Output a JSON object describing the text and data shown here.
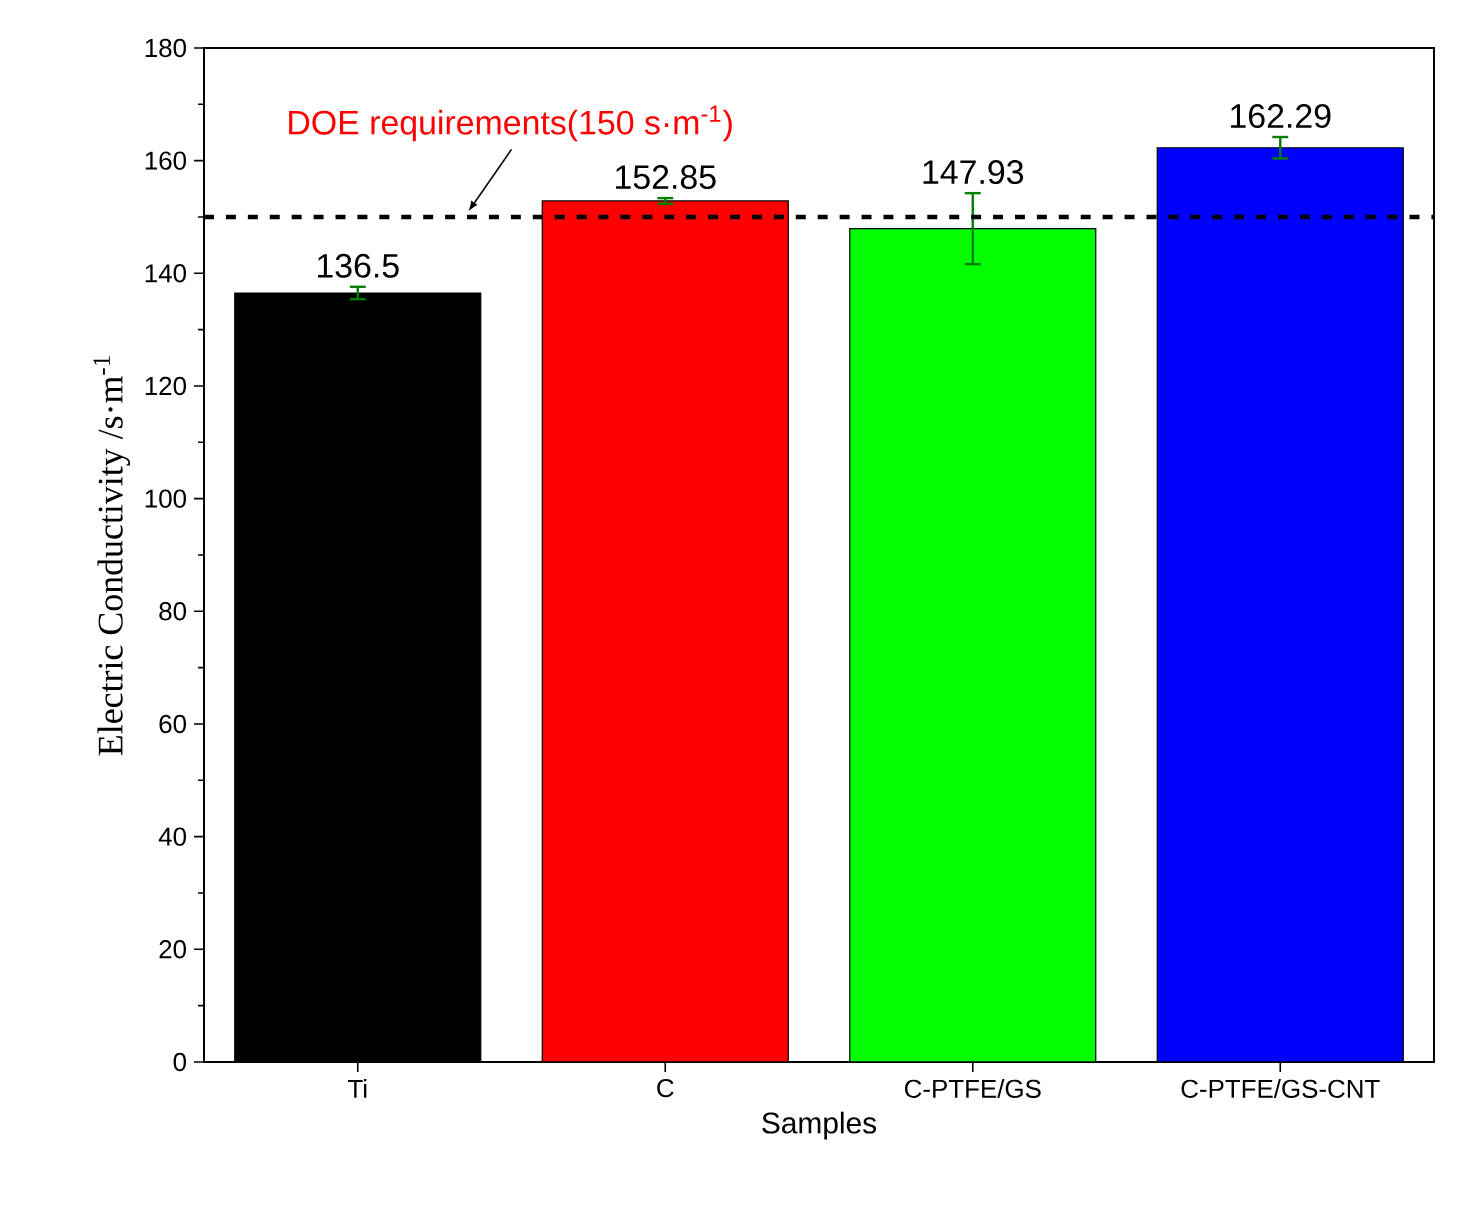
{
  "chart_data": {
    "type": "bar",
    "xlabel": "Samples",
    "ylabel": "Electric Conductivity /s·m$^{-1}$",
    "categories": [
      "Ti",
      "C",
      "C-PTFE/GS",
      "C-PTFE/GS-CNT"
    ],
    "values": [
      136.5,
      152.85,
      147.93,
      162.29
    ],
    "colors": [
      "#000000",
      "#ff0000",
      "#00ff00",
      "#0000ff"
    ],
    "errors": [
      1.1,
      0.5,
      6.3,
      1.9
    ],
    "data_labels": true,
    "ylim": [
      0,
      180
    ],
    "yticks": [
      0,
      20,
      40,
      60,
      80,
      100,
      120,
      140,
      160,
      180
    ],
    "ref_lines": [
      {
        "axis": "y",
        "value": 150,
        "label": "DOE requirements(150 s·m$^{-1}$)",
        "color": "#000000",
        "line_style": "dashed"
      }
    ],
    "grid": false
  }
}
